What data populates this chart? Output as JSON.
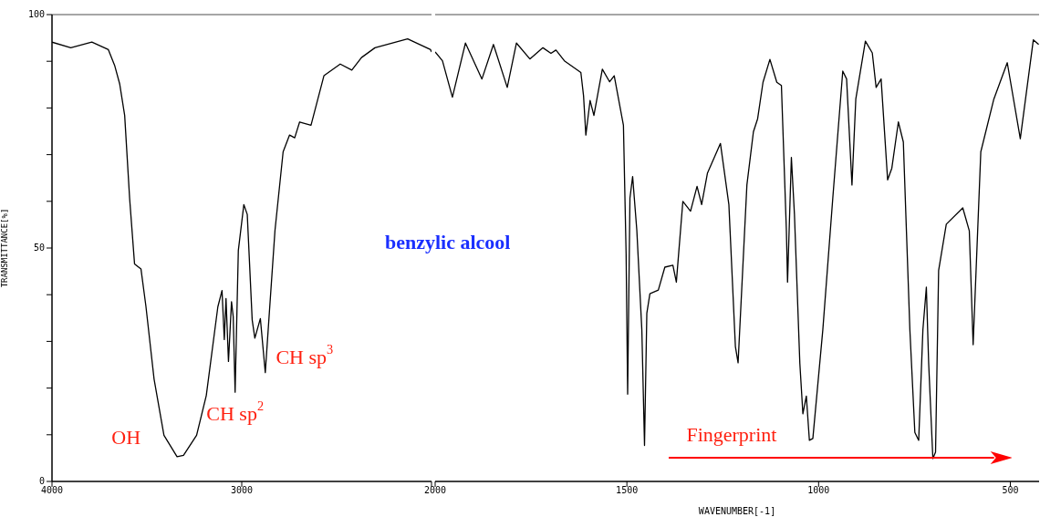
{
  "chart_data": [
    {
      "type": "line",
      "title": "benzylic alcool",
      "ylabel": "TRANSMITTANCE[%]",
      "xlim": [
        4000,
        2000
      ],
      "xticks": [
        4000,
        3000,
        {
          "value": 2000,
          "label": null
        }
      ],
      "ylim": [
        0,
        100
      ],
      "yticks": [
        0,
        {
          "value": 10,
          "label": null
        },
        {
          "value": 20,
          "label": null
        },
        {
          "value": 30,
          "label": null
        },
        {
          "value": 40,
          "label": null
        },
        50,
        {
          "value": 60,
          "label": null
        },
        {
          "value": 70,
          "label": null
        },
        {
          "value": 80,
          "label": null
        },
        {
          "value": 90,
          "label": null
        },
        100
      ],
      "marker": "none",
      "line_style": "solid",
      "x": [
        4000,
        3901,
        3790,
        3703,
        3669,
        3643,
        3617,
        3591,
        3565,
        3531,
        3505,
        3462,
        3410,
        3341,
        3307,
        3238,
        3187,
        3126,
        3104,
        3092,
        3083,
        3070,
        3054,
        3045,
        3035,
        3018,
        2989,
        2971,
        2945,
        2931,
        2902,
        2876,
        2856,
        2825,
        2782,
        2748,
        2721,
        2695,
        2635,
        2567,
        2481,
        2420,
        2369,
        2298,
        2126,
        2005,
        2000
      ],
      "series": [
        {
          "color": "#000000",
          "values": [
            94.1,
            92.9,
            94.1,
            92.5,
            89,
            85.1,
            78.4,
            60.7,
            46.6,
            45.5,
            37.5,
            21.9,
            9.9,
            5.3,
            5.6,
            9.9,
            18.4,
            37.4,
            40.9,
            30.4,
            39.2,
            25.7,
            38.5,
            35.3,
            19.1,
            49.5,
            59.3,
            57.2,
            34.6,
            30.7,
            34.9,
            23.3,
            35.3,
            53.7,
            70.6,
            74.2,
            73.6,
            77,
            76.3,
            86.9,
            89.4,
            88.1,
            90.8,
            92.9,
            94.8,
            92.5,
            92
          ]
        }
      ],
      "annotations": [
        "OH",
        "CH sp$^{2}$",
        "CH sp$^{3}$"
      ]
    },
    {
      "type": "line",
      "xlabel": "WAVENUMBER[-1]",
      "xlim": [
        2000,
        425
      ],
      "xticks": [
        2000,
        1500,
        1000,
        500
      ],
      "ylim": [
        0,
        100
      ],
      "tick_labels": "x",
      "marker": "none",
      "line_style": "solid",
      "x": [
        2000,
        1981,
        1955,
        1921,
        1878,
        1848,
        1812,
        1788,
        1753,
        1719,
        1698,
        1685,
        1663,
        1620,
        1613,
        1607,
        1596,
        1586,
        1564,
        1545,
        1533,
        1509,
        1502,
        1498,
        1492,
        1485,
        1474,
        1461,
        1454,
        1448,
        1440,
        1418,
        1401,
        1380,
        1371,
        1354,
        1334,
        1317,
        1305,
        1290,
        1256,
        1234,
        1217,
        1210,
        1187,
        1170,
        1159,
        1145,
        1127,
        1109,
        1097,
        1084,
        1081,
        1071,
        1063,
        1049,
        1041,
        1032,
        1024,
        1015,
        989,
        963,
        937,
        927,
        913,
        903,
        878,
        860,
        850,
        837,
        820,
        809,
        792,
        779,
        762,
        749,
        739,
        728,
        719,
        713,
        702,
        695,
        687,
        667,
        624,
        607,
        597,
        577,
        543,
        508,
        474,
        440,
        426
      ],
      "series": [
        {
          "color": "#000000",
          "values": [
            92,
            90.1,
            82.3,
            93.9,
            86.2,
            93.6,
            84.4,
            93.9,
            90.5,
            92.9,
            91.7,
            92.4,
            90.1,
            87.6,
            82.6,
            74.2,
            81.6,
            78.4,
            88.3,
            85.6,
            86.9,
            76.3,
            48.7,
            18.7,
            60.7,
            65.3,
            53.7,
            32.5,
            7.7,
            36,
            40.2,
            41,
            45.9,
            46.3,
            42.7,
            60,
            57.9,
            63.2,
            59.3,
            66,
            72.4,
            59.3,
            28.9,
            25.4,
            63.5,
            74.9,
            77.7,
            85.5,
            90.4,
            85.5,
            84.8,
            53.7,
            42.7,
            69.4,
            57.2,
            25.4,
            14.5,
            18.3,
            8.8,
            9.2,
            32.5,
            60.7,
            87.9,
            86.2,
            63.5,
            81.9,
            94.3,
            91.8,
            84.4,
            86.2,
            64.6,
            67.1,
            77,
            72.7,
            32.5,
            10.5,
            8.8,
            32.5,
            41.6,
            25.4,
            4.9,
            6.3,
            45.2,
            55.1,
            58.6,
            53.7,
            29.3,
            70.6,
            81.9,
            89.7,
            73.4,
            94.6,
            93.6
          ]
        }
      ],
      "annotations": [
        "Fingerprint"
      ]
    }
  ]
}
